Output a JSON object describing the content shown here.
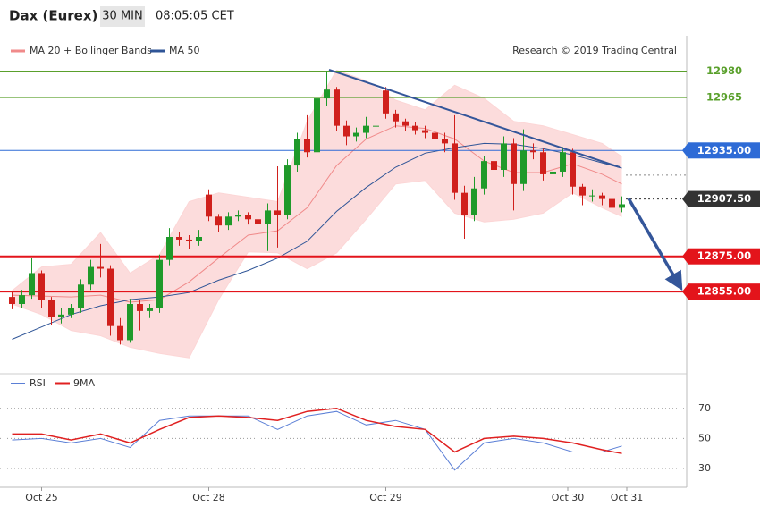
{
  "header": {
    "symbol": "Dax (Eurex)",
    "timeframe": "30 MIN",
    "time": "08:05:05 CET"
  },
  "chart_data": [
    {
      "type": "candlestick",
      "note": "Research © 2019 Trading Central",
      "up_color": "#1f9a2a",
      "down_color": "#d0201c",
      "xlim": [
        -0.5,
        68.5
      ],
      "ylim": [
        12810,
        13000
      ],
      "ohlc": [
        [
          12852,
          12855,
          12845,
          12848
        ],
        [
          12848,
          12856,
          12846,
          12853
        ],
        [
          12853,
          12874,
          12851,
          12865.5
        ],
        [
          12865.5,
          12867,
          12846,
          12850.5
        ],
        [
          12850.5,
          12852,
          12836,
          12840.5
        ],
        [
          12840.5,
          12846,
          12837,
          12842
        ],
        [
          12842,
          12848,
          12840,
          12845.5
        ],
        [
          12845.5,
          12862,
          12843,
          12859
        ],
        [
          12859,
          12873,
          12856,
          12869
        ],
        [
          12869,
          12882,
          12863,
          12868
        ],
        [
          12868,
          12870,
          12830,
          12835.5
        ],
        [
          12835.5,
          12840,
          12825,
          12827.5
        ],
        [
          12827.5,
          12851,
          12826,
          12848
        ],
        [
          12848,
          12850,
          12833,
          12844
        ],
        [
          12844,
          12848,
          12840,
          12845.5
        ],
        [
          12845.5,
          12876,
          12843,
          12873
        ],
        [
          12873,
          12891,
          12870,
          12886
        ],
        [
          12886,
          12889,
          12881,
          12884.5
        ],
        [
          12884.5,
          12887,
          12879,
          12883.5
        ],
        [
          12883.5,
          12890,
          12881,
          12886
        ],
        [
          12910,
          12913,
          12895,
          12897.5
        ],
        [
          12897.5,
          12899,
          12889,
          12892.5
        ],
        [
          12892.5,
          12900,
          12890,
          12897.5
        ],
        [
          12897.5,
          12901,
          12895,
          12898.5
        ],
        [
          12898.5,
          12900,
          12893,
          12896
        ],
        [
          12896,
          12898,
          12890,
          12893.5
        ],
        [
          12893.5,
          12905,
          12878,
          12901
        ],
        [
          12901,
          12926,
          12880,
          12898.5
        ],
        [
          12898.5,
          12930,
          12896,
          12926.5
        ],
        [
          12926.5,
          12945,
          12923,
          12941.5
        ],
        [
          12941.5,
          12955,
          12931,
          12934
        ],
        [
          12934,
          12968,
          12930,
          12964.5
        ],
        [
          12964.5,
          12980,
          12960,
          12969.5
        ],
        [
          12969.5,
          12971,
          12946,
          12949
        ],
        [
          12949,
          12952,
          12938,
          12943
        ],
        [
          12943,
          12948,
          12940,
          12945
        ],
        [
          12945,
          12954,
          12942,
          12949
        ],
        [
          12949,
          12953,
          12945,
          12949
        ],
        [
          12969,
          12971,
          12953,
          12956
        ],
        [
          12956,
          12958,
          12948,
          12951.5
        ],
        [
          12951.5,
          12953,
          12946,
          12949
        ],
        [
          12949,
          12951,
          12944,
          12946.5
        ],
        [
          12946.5,
          12949,
          12942,
          12945
        ],
        [
          12945,
          12947,
          12938,
          12941.5
        ],
        [
          12941.5,
          12945,
          12934,
          12939
        ],
        [
          12939,
          12955,
          12907,
          12911
        ],
        [
          12911,
          12915,
          12885,
          12898.5
        ],
        [
          12898.5,
          12920,
          12895,
          12913.5
        ],
        [
          12913.5,
          12932,
          12910,
          12929
        ],
        [
          12929,
          12933,
          12914,
          12924
        ],
        [
          12924,
          12943,
          12920,
          12939
        ],
        [
          12939,
          12942,
          12901,
          12916
        ],
        [
          12916,
          12947,
          12912,
          12935
        ],
        [
          12935,
          12939,
          12930,
          12934
        ],
        [
          12934,
          12936,
          12918,
          12921.5
        ],
        [
          12921.5,
          12926,
          12916,
          12923
        ],
        [
          12923,
          12937,
          12920,
          12934
        ],
        [
          12934,
          12936,
          12910,
          12914.5
        ],
        [
          12914.5,
          12916,
          12904,
          12909.5
        ],
        [
          12909.5,
          12913,
          12906,
          12909.5
        ],
        [
          12909.5,
          12911,
          12904,
          12907.5
        ],
        [
          12907.5,
          12909,
          12898,
          12902.5
        ],
        [
          12902.5,
          12909,
          12900,
          12904.5
        ]
      ],
      "series": [
        {
          "name": "MA 20 + Bollinger Bands",
          "color": "#f08a8a",
          "band_color": "#fcd6d6",
          "x": [
            0,
            3,
            6,
            9,
            12,
            15,
            18,
            21,
            24,
            27,
            30,
            33,
            36,
            39,
            42,
            45,
            48,
            51,
            54,
            57,
            60,
            62
          ],
          "values": [
            12853,
            12852.5,
            12852,
            12853,
            12849,
            12850.5,
            12860.5,
            12874,
            12887,
            12889.5,
            12902.5,
            12926.5,
            12941.5,
            12949,
            12947.5,
            12941.5,
            12929,
            12922.5,
            12922.5,
            12927.5,
            12921.5,
            12916
          ],
          "upper": [
            12855.5,
            12869,
            12870.5,
            12888.5,
            12865.5,
            12876,
            12906,
            12911,
            12908.5,
            12906,
            12951.5,
            12980.5,
            12974.5,
            12963.5,
            12958,
            12972,
            12964.5,
            12951.5,
            12949,
            12944,
            12939,
            12931.5
          ],
          "lower": [
            12848,
            12842,
            12833,
            12830,
            12823.5,
            12820,
            12817.5,
            12850.5,
            12877.5,
            12877,
            12868,
            12877,
            12896,
            12916,
            12918,
            12899.5,
            12894.5,
            12896,
            12899.5,
            12911,
            12902.5,
            12897.5
          ]
        },
        {
          "name": "MA 50",
          "color": "#2f5597",
          "x": [
            0,
            3,
            6,
            9,
            12,
            15,
            18,
            21,
            24,
            27,
            30,
            33,
            36,
            39,
            42,
            45,
            48,
            51,
            54,
            57,
            60,
            62
          ],
          "values": [
            12828,
            12835,
            12842,
            12847,
            12850.5,
            12852,
            12854.5,
            12861.5,
            12867,
            12874,
            12883.5,
            12900.5,
            12914,
            12925.5,
            12933.5,
            12936.5,
            12939,
            12938.5,
            12936,
            12932.5,
            12928,
            12925
          ]
        }
      ],
      "levels": [
        {
          "value": 12980,
          "label": "12980",
          "color": "#5aa02c",
          "style": "solid",
          "label_style": "text"
        },
        {
          "value": 12965,
          "label": "12965",
          "color": "#5aa02c",
          "style": "solid",
          "label_style": "text"
        },
        {
          "value": 12935,
          "label": "12935.00",
          "color": "#2e6bd6",
          "style": "solid",
          "label_style": "box"
        },
        {
          "value": 12921,
          "color": "#888888",
          "style": "dotted"
        },
        {
          "value": 12907.5,
          "label": "12907.50",
          "color": "#333333",
          "style": "dotted",
          "label_style": "box"
        },
        {
          "value": 12875,
          "label": "12875.00",
          "color": "#e3141b",
          "style": "thick",
          "label_style": "box"
        },
        {
          "value": 12855,
          "label": "12855.00",
          "color": "#e3141b",
          "style": "thick",
          "label_style": "box"
        }
      ]
    },
    {
      "type": "line",
      "xlim": [
        -0.5,
        68.5
      ],
      "ylim": [
        17.5,
        80
      ],
      "yticks": [
        30,
        50,
        70
      ],
      "xticks": [
        {
          "value": 3,
          "label": "Oct 25"
        },
        {
          "value": 20,
          "label": "Oct 28"
        },
        {
          "value": 38,
          "label": "Oct 29"
        },
        {
          "value": 56.5,
          "label": "Oct 30"
        },
        {
          "value": 62.5,
          "label": "Oct 31"
        }
      ],
      "series": [
        {
          "name": "RSI",
          "color": "#5b7fd6",
          "x": [
            0,
            3,
            6,
            9,
            12,
            15,
            18,
            21,
            24,
            27,
            30,
            33,
            36,
            39,
            42,
            45,
            48,
            51,
            54,
            57,
            60,
            62
          ],
          "values": [
            49,
            50,
            47,
            50,
            44,
            62,
            65,
            65,
            65,
            56,
            65,
            68,
            59,
            62,
            56,
            29,
            47,
            50,
            47,
            41,
            41,
            45
          ]
        },
        {
          "name": "9MA",
          "color": "#e02020",
          "x": [
            0,
            3,
            6,
            9,
            12,
            15,
            18,
            21,
            24,
            27,
            30,
            33,
            36,
            39,
            42,
            45,
            48,
            51,
            54,
            57,
            60,
            62
          ],
          "values": [
            53,
            53,
            49,
            53,
            47,
            56,
            64,
            65,
            64,
            62,
            68,
            70,
            62,
            58,
            56,
            41,
            50,
            51.5,
            50,
            47,
            42.5,
            40
          ]
        }
      ]
    }
  ]
}
